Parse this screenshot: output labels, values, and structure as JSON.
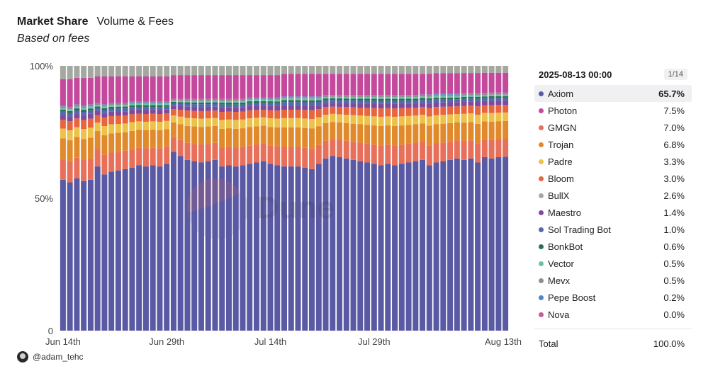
{
  "header": {
    "title": "Market Share",
    "tab": "Volume & Fees",
    "subtitle": "Based on fees"
  },
  "watermark": "Dune",
  "author": "@adam_tehc",
  "legend": {
    "date": "2025-08-13 00:00",
    "page": "1/14",
    "total_label": "Total",
    "total_value": "100.0%",
    "items": [
      {
        "name": "Axiom",
        "value": "65.7%",
        "color": "#5a59a4"
      },
      {
        "name": "Photon",
        "value": "7.5%",
        "color": "#c4489b"
      },
      {
        "name": "GMGN",
        "value": "7.0%",
        "color": "#e8705a"
      },
      {
        "name": "Trojan",
        "value": "6.8%",
        "color": "#e08a2b"
      },
      {
        "name": "Padre",
        "value": "3.3%",
        "color": "#edc24a"
      },
      {
        "name": "Bloom",
        "value": "3.0%",
        "color": "#e8663f"
      },
      {
        "name": "BullX",
        "value": "2.6%",
        "color": "#a5a8a0"
      },
      {
        "name": "Maestro",
        "value": "1.4%",
        "color": "#7e4a9b"
      },
      {
        "name": "Sol Trading Bot",
        "value": "1.0%",
        "color": "#5468ad"
      },
      {
        "name": "BonkBot",
        "value": "0.6%",
        "color": "#2e6e52"
      },
      {
        "name": "Vector",
        "value": "0.5%",
        "color": "#6fbfae"
      },
      {
        "name": "Mevx",
        "value": "0.5%",
        "color": "#8e8e8e"
      },
      {
        "name": "Pepe Boost",
        "value": "0.2%",
        "color": "#4f86c6"
      },
      {
        "name": "Nova",
        "value": "0.0%",
        "color": "#c75a9d"
      }
    ]
  },
  "chart_data": {
    "type": "bar",
    "stacked": true,
    "normalized": true,
    "title": "Market Share",
    "subtitle": "Based on fees",
    "x_tick_labels": [
      "Jun 14th",
      "Jun 29th",
      "Jul 14th",
      "Jul 29th",
      "Aug 13th"
    ],
    "y_tick_labels": [
      "100%",
      "50%",
      "0"
    ],
    "ylim": [
      0,
      100
    ],
    "grid": false,
    "legend_position": "right",
    "x_start": "2025-06-14",
    "x_end": "2025-08-13",
    "x_tick_dates": [
      "2025-06-14",
      "2025-06-29",
      "2025-07-14",
      "2025-07-29",
      "2025-08-13"
    ],
    "series_names": [
      "Axiom",
      "Photon",
      "GMGN",
      "Trojan",
      "Padre",
      "Bloom",
      "BullX",
      "Maestro",
      "Sol Trading Bot",
      "BonkBot",
      "Vector",
      "Mevx",
      "Pepe Boost",
      "Nova"
    ],
    "series_colors": [
      "#5a59a4",
      "#c4489b",
      "#e8705a",
      "#e08a2b",
      "#edc24a",
      "#e8663f",
      "#a5a8a0",
      "#7e4a9b",
      "#5468ad",
      "#2e6e52",
      "#6fbfae",
      "#8e8e8e",
      "#4f86c6",
      "#c75a9d"
    ],
    "axiom_share": [
      57.0,
      56.0,
      57.5,
      56.5,
      57.0,
      62.0,
      59.0,
      60.0,
      60.5,
      61.0,
      61.5,
      62.5,
      62.0,
      62.5,
      62.0,
      63.0,
      67.5,
      66.0,
      64.5,
      64.0,
      63.5,
      64.0,
      64.5,
      62.0,
      62.5,
      62.0,
      62.5,
      63.0,
      63.5,
      64.0,
      63.0,
      62.5,
      62.0,
      62.0,
      62.0,
      61.5,
      61.0,
      63.0,
      65.0,
      66.0,
      65.5,
      65.0,
      64.5,
      64.0,
      63.5,
      63.0,
      62.5,
      63.0,
      62.5,
      63.0,
      63.5,
      64.0,
      64.5,
      62.5,
      63.5,
      64.0,
      64.5,
      65.0,
      64.5,
      65.0,
      63.5,
      65.5,
      65.0,
      65.5,
      65.7
    ],
    "bullx_share": [
      5.0,
      5.0,
      4.5,
      4.5,
      4.5,
      4.0,
      4.0,
      4.0,
      4.0,
      4.0,
      4.0,
      4.0,
      4.0,
      4.0,
      4.0,
      4.0,
      3.5,
      3.5,
      3.5,
      3.5,
      3.5,
      3.5,
      3.5,
      3.5,
      3.5,
      3.5,
      3.5,
      3.5,
      3.5,
      3.5,
      3.5,
      3.5,
      3.0,
      3.0,
      3.0,
      3.0,
      3.0,
      3.0,
      3.0,
      3.0,
      3.0,
      3.0,
      3.0,
      3.0,
      3.0,
      3.0,
      3.0,
      3.0,
      3.0,
      3.0,
      3.0,
      3.0,
      3.0,
      3.0,
      2.8,
      2.8,
      2.8,
      2.8,
      2.7,
      2.7,
      2.7,
      2.6,
      2.6,
      2.6,
      2.6
    ],
    "photon_share": [
      10.0,
      10.5,
      10.0,
      10.5,
      10.0,
      10.0,
      10.5,
      10.0,
      10.0,
      10.0,
      9.5,
      9.5,
      9.5,
      9.5,
      9.5,
      9.5,
      9.0,
      9.0,
      9.0,
      9.0,
      9.0,
      9.0,
      9.0,
      9.0,
      9.0,
      9.0,
      9.0,
      8.5,
      8.5,
      8.5,
      8.5,
      8.5,
      8.5,
      8.5,
      8.5,
      8.5,
      8.5,
      8.5,
      8.0,
      8.0,
      8.0,
      8.0,
      8.0,
      8.0,
      8.0,
      8.0,
      8.0,
      8.0,
      8.0,
      8.0,
      8.0,
      8.0,
      7.8,
      7.8,
      7.8,
      7.8,
      7.8,
      7.8,
      7.6,
      7.6,
      7.6,
      7.6,
      7.5,
      7.5,
      7.5
    ]
  }
}
